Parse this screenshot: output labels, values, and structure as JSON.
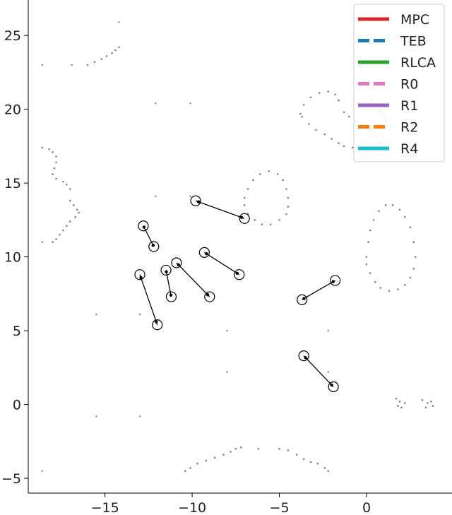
{
  "chart_data": {
    "type": "scatter",
    "title": "",
    "xlabel": "",
    "ylabel": "",
    "xlim": [
      -19.4,
      4.9
    ],
    "ylim": [
      -6.0,
      27.4
    ],
    "grid": false,
    "legend_position": "top-right",
    "x_ticks": [
      -15,
      -10,
      -5,
      0
    ],
    "x_tick_labels": [
      "−15",
      "−10",
      "−5",
      "0"
    ],
    "y_ticks": [
      -5,
      0,
      5,
      10,
      15,
      20,
      25
    ],
    "y_tick_labels": [
      "−5",
      "0",
      "5",
      "10",
      "15",
      "20",
      "25"
    ],
    "legend": [
      {
        "name": "MPC",
        "color": "#d62728",
        "style": "solid"
      },
      {
        "name": "TEB",
        "color": "#1f77b4",
        "style": "dashed"
      },
      {
        "name": "RLCA",
        "color": "#2ca02c",
        "style": "solid"
      },
      {
        "name": "R0",
        "color": "#e377c2",
        "style": "dashed"
      },
      {
        "name": "R1",
        "color": "#9467bd",
        "style": "solid"
      },
      {
        "name": "R2",
        "color": "#ff7f0e",
        "style": "dashed"
      },
      {
        "name": "R4",
        "color": "#17becf",
        "style": "solid"
      }
    ],
    "obstacle_point_color": "#808080",
    "obstacles": {
      "curves": [
        {
          "name": "top-arc",
          "points": [
            [
              -16.0,
              23.0
            ],
            [
              -15.6,
              23.2
            ],
            [
              -15.2,
              23.4
            ],
            [
              -14.9,
              23.6
            ],
            [
              -14.6,
              23.8
            ],
            [
              -14.4,
              24.0
            ],
            [
              -14.2,
              24.2
            ]
          ]
        },
        {
          "name": "left-wall-upper",
          "points": [
            [
              -18.6,
              17.4
            ],
            [
              -18.2,
              17.3
            ],
            [
              -18.0,
              17.1
            ],
            [
              -17.8,
              16.8
            ],
            [
              -17.8,
              16.4
            ],
            [
              -17.9,
              16.0
            ],
            [
              -18.0,
              15.6
            ],
            [
              -17.8,
              15.3
            ],
            [
              -17.4,
              15.1
            ],
            [
              -17.2,
              14.9
            ],
            [
              -17.0,
              14.6
            ]
          ]
        },
        {
          "name": "left-wall-lower",
          "points": [
            [
              -17.0,
              13.8
            ],
            [
              -16.8,
              13.5
            ],
            [
              -16.6,
              13.2
            ],
            [
              -16.5,
              13.0
            ],
            [
              -16.7,
              12.7
            ],
            [
              -17.0,
              12.4
            ],
            [
              -17.2,
              12.1
            ],
            [
              -17.4,
              11.8
            ],
            [
              -17.6,
              11.5
            ],
            [
              -17.8,
              11.2
            ],
            [
              -18.0,
              11.0
            ]
          ]
        },
        {
          "name": "ring-circle",
          "points": [
            [
              -7.0,
              14.0
            ],
            [
              -6.8,
              14.6
            ],
            [
              -6.5,
              15.2
            ],
            [
              -6.1,
              15.6
            ],
            [
              -5.6,
              15.8
            ],
            [
              -5.1,
              15.6
            ],
            [
              -4.8,
              15.2
            ],
            [
              -4.6,
              14.6
            ],
            [
              -4.5,
              14.0
            ],
            [
              -4.5,
              13.4
            ],
            [
              -4.6,
              12.9
            ],
            [
              -5.0,
              12.5
            ],
            [
              -5.5,
              12.2
            ],
            [
              -6.0,
              12.2
            ],
            [
              -6.4,
              12.5
            ],
            [
              -6.8,
              12.9
            ],
            [
              -7.0,
              13.5
            ]
          ]
        },
        {
          "name": "heart-left",
          "points": [
            [
              -3.8,
              19.7
            ],
            [
              -3.6,
              20.3
            ],
            [
              -3.2,
              20.8
            ],
            [
              -2.7,
              21.1
            ],
            [
              -2.2,
              21.2
            ],
            [
              -1.8,
              21.0
            ],
            [
              -1.6,
              20.6
            ]
          ]
        },
        {
          "name": "heart-inner",
          "points": [
            [
              -1.3,
              19.8
            ],
            [
              -1.0,
              19.5
            ],
            [
              -0.6,
              19.2
            ],
            [
              -0.2,
              18.9
            ],
            [
              0.2,
              18.6
            ],
            [
              0.5,
              18.2
            ],
            [
              0.8,
              17.7
            ]
          ]
        },
        {
          "name": "heart-lower",
          "points": [
            [
              -3.7,
              19.5
            ],
            [
              -3.3,
              19.0
            ],
            [
              -2.9,
              18.6
            ],
            [
              -2.4,
              18.3
            ],
            [
              -2.0,
              18.0
            ],
            [
              -1.6,
              17.7
            ],
            [
              -1.3,
              17.5
            ],
            [
              -0.8,
              17.4
            ],
            [
              -0.4,
              17.4
            ]
          ]
        },
        {
          "name": "heart-right",
          "points": [
            [
              0.3,
              20.6
            ],
            [
              0.5,
              20.2
            ],
            [
              0.8,
              19.9
            ],
            [
              1.0,
              19.6
            ],
            [
              1.1,
              19.3
            ],
            [
              1.0,
              18.9
            ]
          ]
        },
        {
          "name": "ellipse",
          "points": [
            [
              0.0,
              10.0
            ],
            [
              0.1,
              11.0
            ],
            [
              0.2,
              11.8
            ],
            [
              0.4,
              12.5
            ],
            [
              0.7,
              13.1
            ],
            [
              1.1,
              13.5
            ],
            [
              1.5,
              13.5
            ],
            [
              1.9,
              13.2
            ],
            [
              2.2,
              12.7
            ],
            [
              2.5,
              12.0
            ],
            [
              2.7,
              11.0
            ],
            [
              2.8,
              10.0
            ],
            [
              2.7,
              9.2
            ],
            [
              2.5,
              8.6
            ],
            [
              2.2,
              8.1
            ],
            [
              1.8,
              7.8
            ],
            [
              1.3,
              7.7
            ],
            [
              0.8,
              7.9
            ],
            [
              0.5,
              8.3
            ],
            [
              0.2,
              8.9
            ],
            [
              0.0,
              9.5
            ]
          ]
        },
        {
          "name": "bottom-left-arc",
          "points": [
            [
              -10.4,
              -4.5
            ],
            [
              -10.1,
              -4.3
            ],
            [
              -9.7,
              -4.0
            ],
            [
              -9.2,
              -3.8
            ],
            [
              -8.7,
              -3.6
            ],
            [
              -8.2,
              -3.4
            ],
            [
              -7.8,
              -3.2
            ],
            [
              -7.5,
              -3.0
            ],
            [
              -7.2,
              -2.9
            ]
          ]
        },
        {
          "name": "bottom-right-arc",
          "points": [
            [
              -6.2,
              -3.0
            ],
            [
              -5.0,
              -3.0
            ],
            [
              -4.5,
              -3.1
            ],
            [
              -4.0,
              -3.4
            ],
            [
              -3.6,
              -3.7
            ],
            [
              -3.2,
              -3.9
            ],
            [
              -2.8,
              -4.0
            ],
            [
              -2.4,
              -4.3
            ],
            [
              -2.2,
              -4.5
            ]
          ]
        },
        {
          "name": "far-right-left",
          "points": [
            [
              1.7,
              0.4
            ],
            [
              1.9,
              0.2
            ],
            [
              1.8,
              -0.1
            ],
            [
              2.0,
              -0.2
            ],
            [
              2.2,
              0.1
            ]
          ]
        },
        {
          "name": "far-right-right",
          "points": [
            [
              3.2,
              0.3
            ],
            [
              3.5,
              0.1
            ],
            [
              3.7,
              0.2
            ],
            [
              3.8,
              -0.1
            ],
            [
              3.4,
              -0.2
            ]
          ]
        }
      ],
      "dots": [
        [
          -18.6,
          23.0
        ],
        [
          -16.9,
          23.0
        ],
        [
          -14.2,
          25.9
        ],
        [
          -12.1,
          20.4
        ],
        [
          -10.1,
          20.4
        ],
        [
          -12.1,
          14.1
        ],
        [
          -10.1,
          14.1
        ],
        [
          -18.6,
          11.0
        ],
        [
          -15.5,
          6.1
        ],
        [
          -13.0,
          6.1
        ],
        [
          -8.0,
          5.0
        ],
        [
          -2.2,
          5.0
        ],
        [
          -8.0,
          2.2
        ],
        [
          -2.2,
          2.2
        ],
        [
          -15.5,
          -0.8
        ],
        [
          -13.0,
          -0.8
        ],
        [
          -18.6,
          -4.5
        ]
      ]
    },
    "agents": [
      {
        "start": [
          -9.8,
          13.8
        ],
        "end": [
          -7.0,
          12.6
        ]
      },
      {
        "start": [
          -12.8,
          12.1
        ],
        "end": [
          -12.2,
          10.7
        ]
      },
      {
        "start": [
          -9.3,
          10.3
        ],
        "end": [
          -7.3,
          8.8
        ]
      },
      {
        "start": [
          -10.9,
          9.6
        ],
        "end": [
          -9.0,
          7.3
        ]
      },
      {
        "start": [
          -11.5,
          9.1
        ],
        "end": [
          -11.2,
          7.3
        ]
      },
      {
        "start": [
          -13.0,
          8.8
        ],
        "end": [
          -12.0,
          5.4
        ]
      },
      {
        "start": [
          -3.7,
          7.1
        ],
        "end": [
          -1.8,
          8.4
        ]
      },
      {
        "start": [
          -3.6,
          3.3
        ],
        "end": [
          -1.9,
          1.2
        ]
      }
    ]
  }
}
